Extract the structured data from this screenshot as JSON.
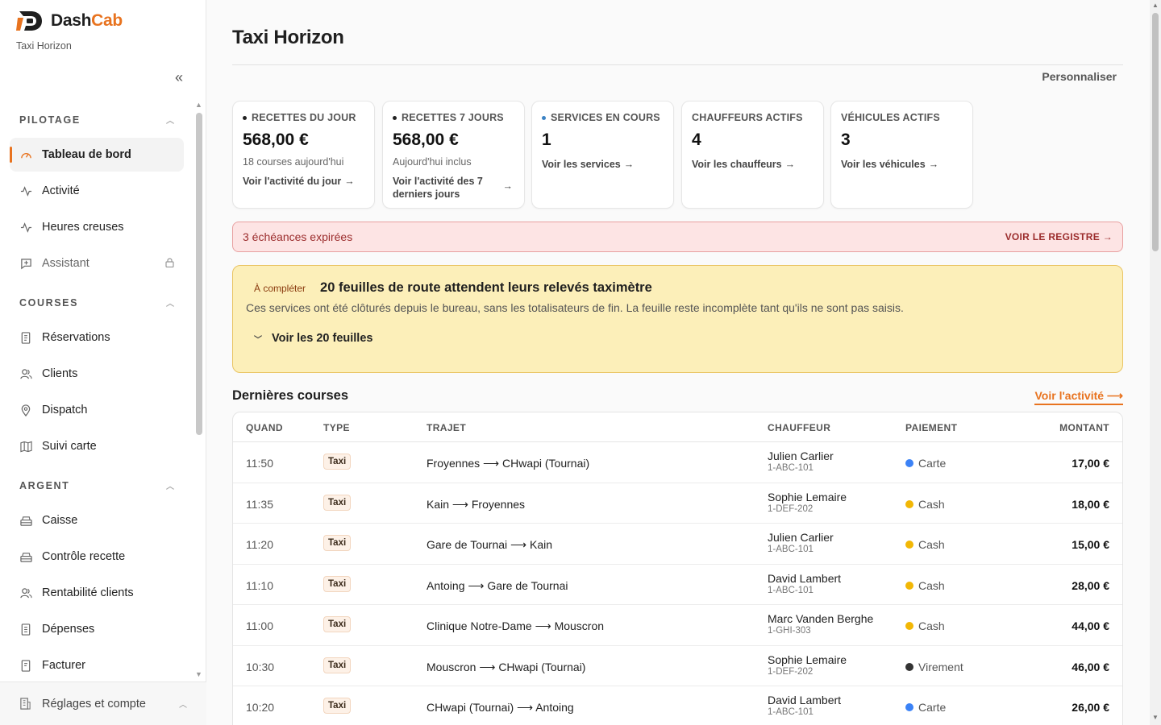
{
  "brand": {
    "name_main": "Dash",
    "name_accent": "Cab",
    "subtitle": "Taxi Horizon"
  },
  "sidebar": {
    "collapse_icon": "double-chevron-left-icon",
    "sections": [
      {
        "label": "PILOTAGE",
        "items": [
          {
            "label": "Tableau de bord",
            "icon": "gauge-icon",
            "active": true
          },
          {
            "label": "Activité",
            "icon": "activity-icon"
          },
          {
            "label": "Heures creuses",
            "icon": "activity-icon"
          },
          {
            "label": "Assistant",
            "icon": "chat-icon",
            "locked": true
          }
        ]
      },
      {
        "label": "COURSES",
        "items": [
          {
            "label": "Réservations",
            "icon": "document-icon"
          },
          {
            "label": "Clients",
            "icon": "users-icon"
          },
          {
            "label": "Dispatch",
            "icon": "location-icon"
          },
          {
            "label": "Suivi carte",
            "icon": "map-icon"
          }
        ]
      },
      {
        "label": "ARGENT",
        "items": [
          {
            "label": "Caisse",
            "icon": "register-icon"
          },
          {
            "label": "Contrôle recette",
            "icon": "register-icon"
          },
          {
            "label": "Rentabilité clients",
            "icon": "users-icon"
          },
          {
            "label": "Dépenses",
            "icon": "receipt-icon"
          },
          {
            "label": "Facturer",
            "icon": "invoice-icon"
          }
        ]
      }
    ],
    "footer": {
      "label": "Réglages et compte",
      "icon": "building-icon"
    }
  },
  "header": {
    "title": "Taxi Horizon",
    "customize": "Personnaliser"
  },
  "kpis": [
    {
      "label": "RECETTES DU JOUR",
      "value": "568,00 €",
      "sub": "18 courses aujourd'hui",
      "link": "Voir l'activité du jour",
      "dot": "dark"
    },
    {
      "label": "RECETTES 7 JOURS",
      "value": "568,00 €",
      "sub": "Aujourd'hui inclus",
      "link": "Voir l'activité des 7 derniers jours",
      "dot": "dark"
    },
    {
      "label": "SERVICES EN COURS",
      "value": "1",
      "link": "Voir les services",
      "dot": "blue"
    },
    {
      "label": "CHAUFFEURS ACTIFS",
      "value": "4",
      "link": "Voir les chauffeurs"
    },
    {
      "label": "VÉHICULES ACTIFS",
      "value": "3",
      "link": "Voir les véhicules"
    }
  ],
  "alert": {
    "text": "3 échéances expirées",
    "link": "VOIR LE REGISTRE →"
  },
  "notice": {
    "badge": "À compléter",
    "title": "20 feuilles de route attendent leurs relevés taximètre",
    "description": "Ces services ont été clôturés depuis le bureau, sans les totalisateurs de fin. La feuille reste incomplète tant qu'ils ne sont pas saisis.",
    "toggle": "Voir les 20 feuilles"
  },
  "recent": {
    "title": "Dernières courses",
    "link": "Voir l'activité ⟶",
    "columns": [
      "QUAND",
      "TYPE",
      "TRAJET",
      "CHAUFFEUR",
      "PAIEMENT",
      "MONTANT"
    ],
    "rows": [
      {
        "when": "11:50",
        "type": "Taxi",
        "trip": "Froyennes ⟶ CHwapi (Tournai)",
        "driver": "Julien Carlier",
        "plate": "1-ABC-101",
        "payment": "Carte",
        "pay_color": "#3b82f6",
        "amount": "17,00 €"
      },
      {
        "when": "11:35",
        "type": "Taxi",
        "trip": "Kain ⟶ Froyennes",
        "driver": "Sophie Lemaire",
        "plate": "1-DEF-202",
        "payment": "Cash",
        "pay_color": "#f2b705",
        "amount": "18,00 €"
      },
      {
        "when": "11:20",
        "type": "Taxi",
        "trip": "Gare de Tournai ⟶ Kain",
        "driver": "Julien Carlier",
        "plate": "1-ABC-101",
        "payment": "Cash",
        "pay_color": "#f2b705",
        "amount": "15,00 €"
      },
      {
        "when": "11:10",
        "type": "Taxi",
        "trip": "Antoing ⟶ Gare de Tournai",
        "driver": "David Lambert",
        "plate": "1-ABC-101",
        "payment": "Cash",
        "pay_color": "#f2b705",
        "amount": "28,00 €"
      },
      {
        "when": "11:00",
        "type": "Taxi",
        "trip": "Clinique Notre-Dame ⟶ Mouscron",
        "driver": "Marc Vanden Berghe",
        "plate": "1-GHI-303",
        "payment": "Cash",
        "pay_color": "#f2b705",
        "amount": "44,00 €"
      },
      {
        "when": "10:30",
        "type": "Taxi",
        "trip": "Mouscron ⟶ CHwapi (Tournai)",
        "driver": "Sophie Lemaire",
        "plate": "1-DEF-202",
        "payment": "Virement",
        "pay_color": "#333333",
        "amount": "46,00 €"
      },
      {
        "when": "10:20",
        "type": "Taxi",
        "trip": "CHwapi (Tournai) ⟶ Antoing",
        "driver": "David Lambert",
        "plate": "1-ABC-101",
        "payment": "Carte",
        "pay_color": "#3b82f6",
        "amount": "26,00 €"
      }
    ]
  },
  "colors": {
    "accent": "#e8731f",
    "alert_bg": "#fde4e4",
    "notice_bg": "#fcefb9"
  }
}
